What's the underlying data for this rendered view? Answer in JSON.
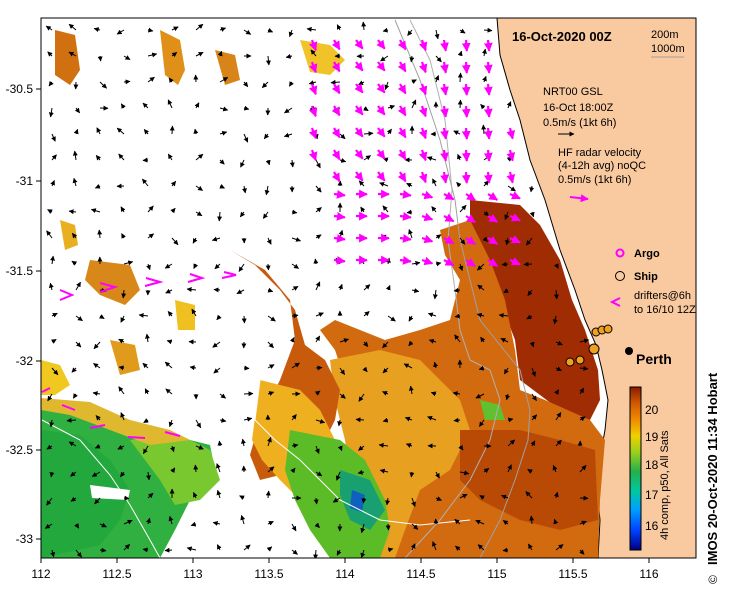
{
  "title": "16-Oct-2020 00Z",
  "isobaths": [
    "200m",
    "1000m"
  ],
  "gsl": {
    "title": "NRT00 GSL",
    "time": "16-Oct 18:00Z",
    "scale": "0.5m/s (1kt 6h)"
  },
  "hf_radar": {
    "line1": "HF radar velocity",
    "line2": "(4-12h avg) noQC",
    "scale": "0.5m/s (1kt 6h)"
  },
  "legend": {
    "argo": "Argo",
    "ship": "Ship",
    "drifters_line1": "drifters@6h",
    "drifters_line2": "to 16/10 12Z"
  },
  "city": "Perth",
  "credit": "IMOS 20-Oct-2020 11:34 Hobart",
  "copyright_symbol": "©",
  "colorbar": {
    "label": "4h comp, p50, All Sats",
    "ticks": [
      "16",
      "17",
      "18",
      "19",
      "20"
    ]
  },
  "axes": {
    "x_ticks": [
      "112",
      "112.5",
      "113",
      "113.5",
      "114",
      "114.5",
      "115",
      "115.5",
      "116"
    ],
    "y_ticks": [
      "-30.5",
      "-31",
      "-31.5",
      "-32",
      "-32.5",
      "-33"
    ],
    "xlim": [
      112,
      116.3
    ],
    "ylim": [
      -33.1,
      -30.1
    ]
  },
  "colors": {
    "land": "#f9c9a0",
    "radar": "#ff00ff",
    "warm": "#a83c06",
    "cool": "#22b14c"
  }
}
